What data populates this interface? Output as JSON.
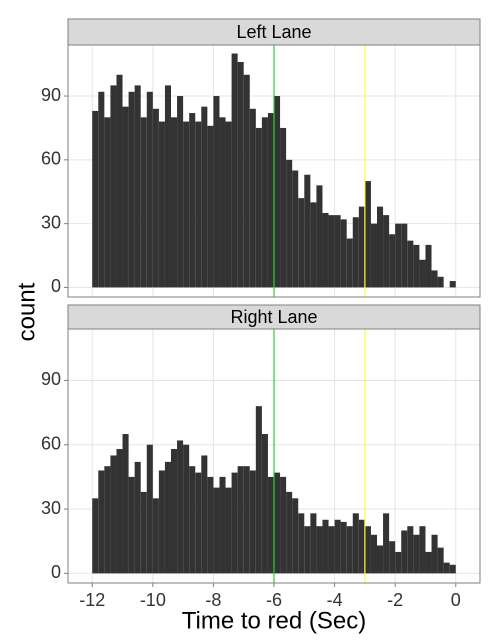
{
  "chart_data": [
    {
      "type": "histogram",
      "title": "Left Lane",
      "color": "#333333",
      "bins": [
        -12,
        -11.8,
        -11.6,
        -11.4,
        -11.2,
        -11,
        -10.8,
        -10.6,
        -10.4,
        -10.2,
        -10,
        -9.8,
        -9.6,
        -9.4,
        -9.2,
        -9,
        -8.8,
        -8.6,
        -8.4,
        -8.2,
        -8,
        -7.8,
        -7.6,
        -7.4,
        -7.2,
        -7,
        -6.8,
        -6.6,
        -6.4,
        -6.2,
        -6,
        -5.8,
        -5.6,
        -5.4,
        -5.2,
        -5,
        -4.8,
        -4.6,
        -4.4,
        -4.2,
        -4,
        -3.8,
        -3.6,
        -3.4,
        -3.2,
        -3,
        -2.8,
        -2.6,
        -2.4,
        -2.2,
        -2,
        -1.8,
        -1.6,
        -1.4,
        -1.2,
        -1,
        -0.8,
        -0.6,
        -0.4,
        -0.2,
        0
      ],
      "values": [
        83,
        92,
        80,
        95,
        100,
        85,
        92,
        95,
        80,
        92,
        84,
        78,
        95,
        80,
        90,
        78,
        82,
        78,
        85,
        76,
        90,
        80,
        78,
        110,
        106,
        100,
        84,
        75,
        80,
        82,
        90,
        75,
        60,
        55,
        42,
        53,
        40,
        48,
        35,
        34,
        34,
        32,
        23,
        33,
        38,
        50,
        30,
        38,
        34,
        25,
        30,
        30,
        22,
        20,
        13,
        20,
        8,
        5,
        0,
        3
      ],
      "vlines": [
        {
          "x": -6,
          "color": "#33cc33"
        },
        {
          "x": -3,
          "color": "#ffff33"
        }
      ],
      "xlim": [
        -12.8,
        0.8
      ],
      "ylim": [
        -4.5,
        114
      ],
      "xticks": [
        -12,
        -10,
        -8,
        -6,
        -4,
        -2,
        0
      ],
      "yticks": [
        0,
        30,
        60,
        90
      ],
      "grid": true
    },
    {
      "type": "histogram",
      "title": "Right Lane",
      "color": "#333333",
      "bins": [
        -12,
        -11.8,
        -11.6,
        -11.4,
        -11.2,
        -11,
        -10.8,
        -10.6,
        -10.4,
        -10.2,
        -10,
        -9.8,
        -9.6,
        -9.4,
        -9.2,
        -9,
        -8.8,
        -8.6,
        -8.4,
        -8.2,
        -8,
        -7.8,
        -7.6,
        -7.4,
        -7.2,
        -7,
        -6.8,
        -6.6,
        -6.4,
        -6.2,
        -6,
        -5.8,
        -5.6,
        -5.4,
        -5.2,
        -5,
        -4.8,
        -4.6,
        -4.4,
        -4.2,
        -4,
        -3.8,
        -3.6,
        -3.4,
        -3.2,
        -3,
        -2.8,
        -2.6,
        -2.4,
        -2.2,
        -2,
        -1.8,
        -1.6,
        -1.4,
        -1.2,
        -1,
        -0.8,
        -0.6,
        -0.4,
        -0.2,
        0
      ],
      "values": [
        35,
        48,
        50,
        55,
        58,
        65,
        45,
        52,
        38,
        60,
        35,
        48,
        52,
        58,
        62,
        60,
        50,
        47,
        55,
        45,
        40,
        45,
        40,
        47,
        50,
        50,
        48,
        78,
        65,
        45,
        47,
        45,
        38,
        35,
        28,
        22,
        28,
        22,
        25,
        22,
        25,
        24,
        22,
        28,
        25,
        22,
        18,
        13,
        28,
        15,
        10,
        20,
        22,
        18,
        22,
        10,
        18,
        12,
        5,
        4
      ],
      "vlines": [
        {
          "x": -6,
          "color": "#33cc33"
        },
        {
          "x": -3,
          "color": "#ffff33"
        }
      ],
      "xlim": [
        -12.8,
        0.8
      ],
      "ylim": [
        -4.5,
        114
      ],
      "xticks": [
        -12,
        -10,
        -8,
        -6,
        -4,
        -2,
        0
      ],
      "yticks": [
        0,
        30,
        60,
        90
      ],
      "grid": true
    }
  ],
  "x_label": "Time to red (Sec)",
  "y_label": "count"
}
